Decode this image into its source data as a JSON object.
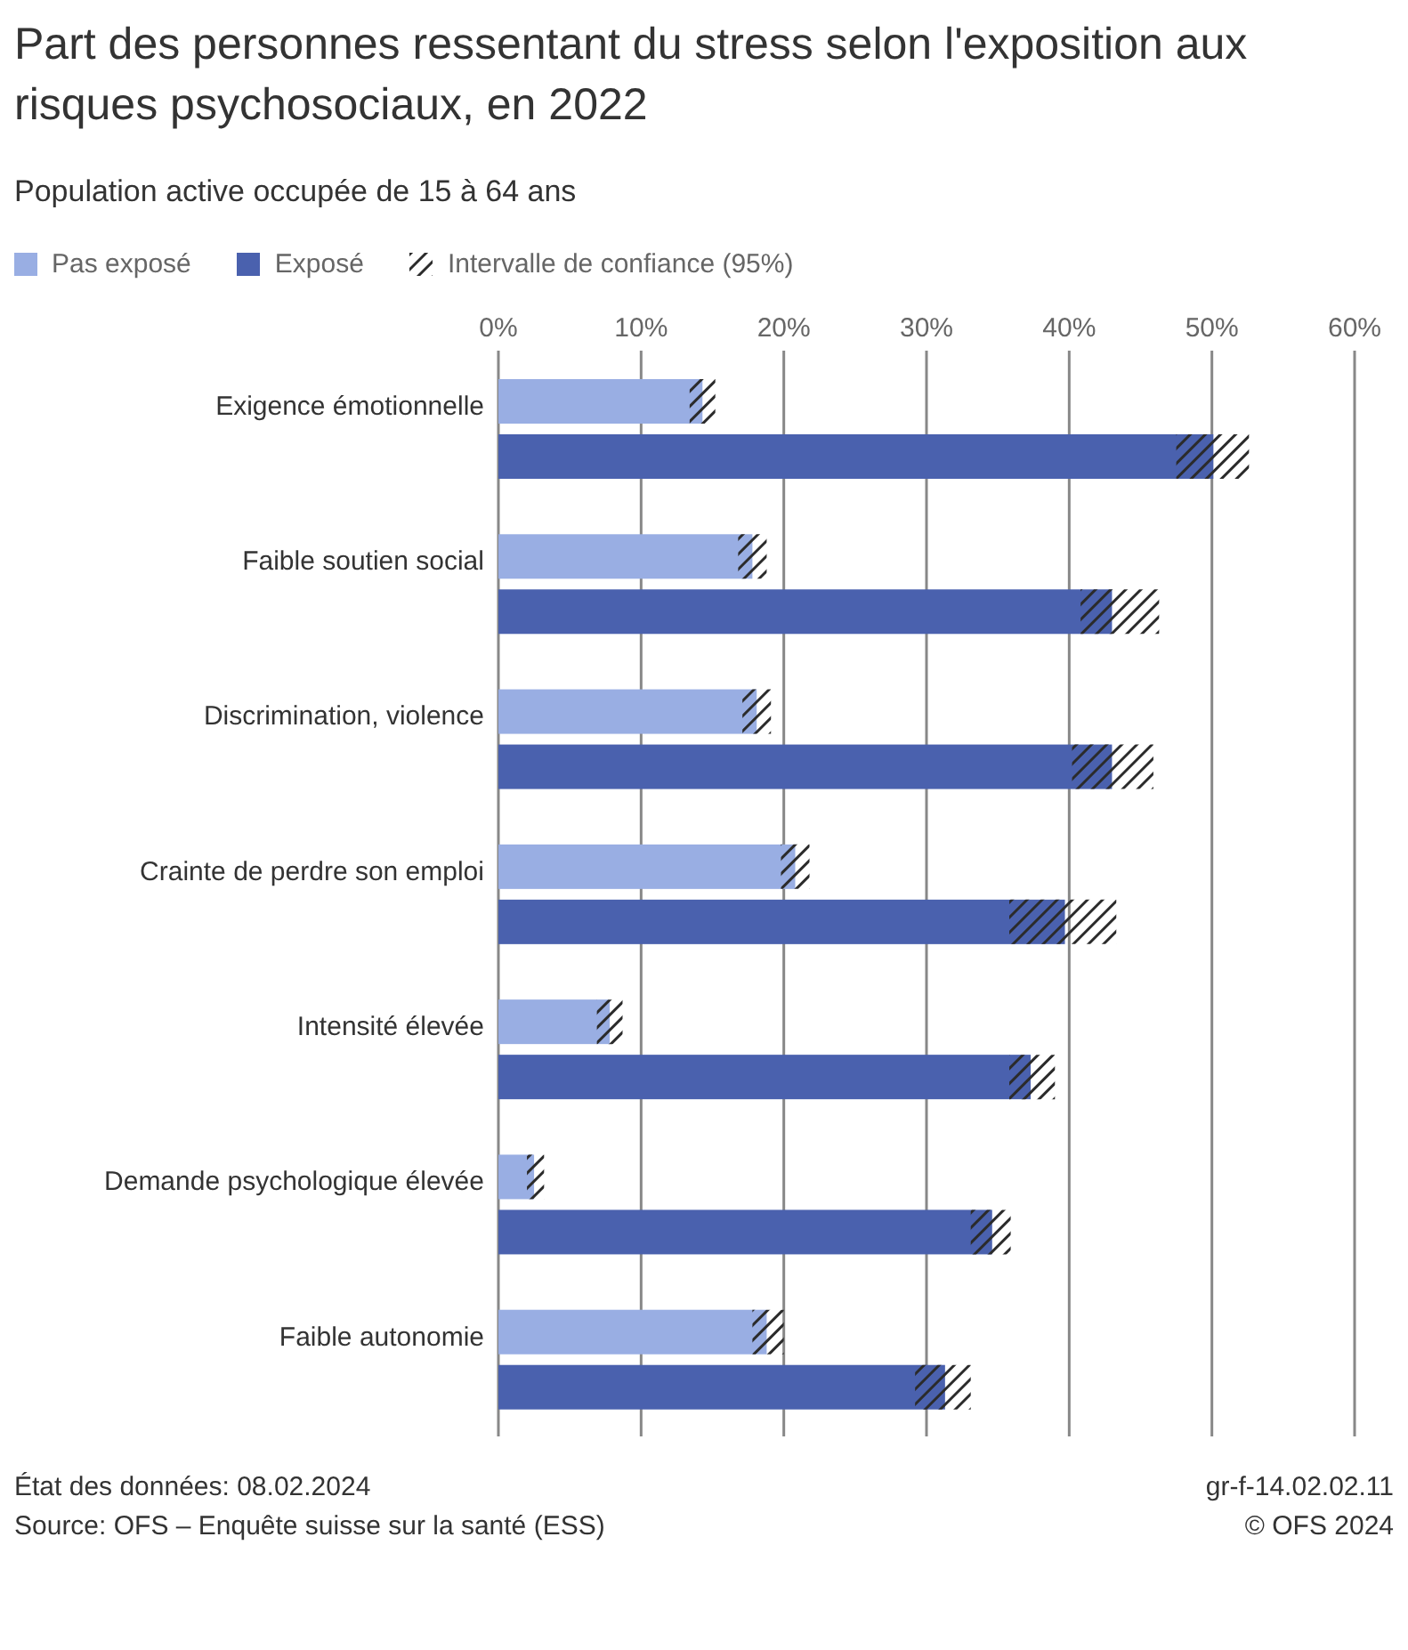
{
  "chart_data": {
    "type": "bar",
    "orientation": "horizontal",
    "title": "Part des personnes ressentant du stress selon l'exposition aux risques psychosociaux, en 2022",
    "subtitle": "Population active occupée de 15 à 64 ans",
    "categories": [
      "Exigence émotionnelle",
      "Faible soutien social",
      "Discrimination, violence",
      "Crainte de perdre son emploi",
      "Intensité élevée",
      "Demande psychologique élevée",
      "Faible autonomie"
    ],
    "series": [
      {
        "name": "Pas exposé",
        "color": "#99aee3",
        "values": [
          14.3,
          17.8,
          18.1,
          20.8,
          7.8,
          2.5,
          18.8
        ],
        "errors": [
          [
            13.4,
            15.2
          ],
          [
            16.8,
            18.8
          ],
          [
            17.1,
            19.1
          ],
          [
            19.8,
            21.8
          ],
          [
            6.9,
            8.7
          ],
          [
            2.0,
            3.2
          ],
          [
            17.8,
            20.0
          ]
        ]
      },
      {
        "name": "Exposé",
        "color": "#4a61ae",
        "values": [
          50.1,
          43.0,
          43.0,
          39.7,
          37.3,
          34.6,
          31.3
        ],
        "errors": [
          [
            47.5,
            52.6
          ],
          [
            40.8,
            46.3
          ],
          [
            40.2,
            45.9
          ],
          [
            35.8,
            43.3
          ],
          [
            35.8,
            39.0
          ],
          [
            33.1,
            35.9
          ],
          [
            29.2,
            33.1
          ]
        ]
      }
    ],
    "xlim": [
      0,
      60
    ],
    "xticks": [
      {
        "value": 0,
        "label": "0%"
      },
      {
        "value": 10,
        "label": "10%"
      },
      {
        "value": 20,
        "label": "20%"
      },
      {
        "value": 30,
        "label": "30%"
      },
      {
        "value": 40,
        "label": "40%"
      },
      {
        "value": 50,
        "label": "50%"
      },
      {
        "value": 60,
        "label": "60%"
      }
    ],
    "grid": "x",
    "legend": "top",
    "annotations": [
      "Intervalle de confiance (95%)",
      "État des données: 08.02.2024",
      "Source: OFS – Enquête suisse sur la santé (ESS)",
      "gr-f-14.02.02.11",
      "© OFS 2024"
    ]
  }
}
